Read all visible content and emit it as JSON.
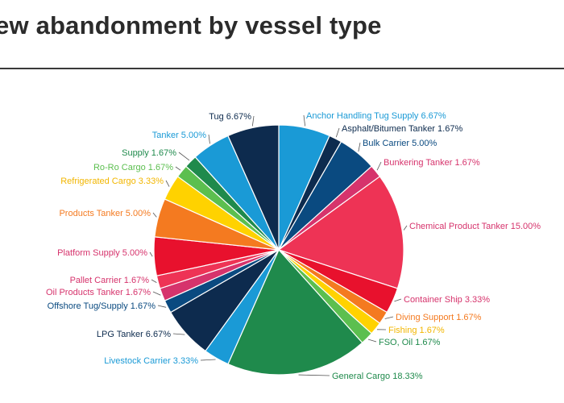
{
  "page": {
    "title": "ew abandonment by vessel type"
  },
  "chart_data": {
    "type": "pie",
    "title": "ew abandonment by vessel type",
    "unit": "%",
    "slices": [
      {
        "label": "Anchor Handling Tug Supply 6.67%",
        "category": "Anchor Handling Tug Supply",
        "value": 6.67,
        "color": "#1a9ad6"
      },
      {
        "label": "Asphalt/Bitumen Tanker 1.67%",
        "category": "Asphalt/Bitumen Tanker",
        "value": 1.67,
        "color": "#0d2b4e"
      },
      {
        "label": "Bulk Carrier 5.00%",
        "category": "Bulk Carrier",
        "value": 5.0,
        "color": "#0a4a80"
      },
      {
        "label": "Bunkering Tanker 1.67%",
        "category": "Bunkering Tanker",
        "value": 1.67,
        "color": "#d6336c"
      },
      {
        "label": "Chemical Product Tanker 15.00%",
        "category": "Chemical Product Tanker",
        "value": 15.0,
        "color": "#ee3355"
      },
      {
        "label": "Container Ship 3.33%",
        "category": "Container Ship",
        "value": 3.33,
        "color": "#e8112d"
      },
      {
        "label": "Diving Support 1.67%",
        "category": "Diving Support",
        "value": 1.67,
        "color": "#f47a20"
      },
      {
        "label": "Fishing 1.67%",
        "category": "Fishing",
        "value": 1.67,
        "color": "#ffd200"
      },
      {
        "label": "FSO, Oil 1.67%",
        "category": "FSO, Oil",
        "value": 1.67,
        "color": "#5cbf4f"
      },
      {
        "label": "General Cargo 18.33%",
        "category": "General Cargo",
        "value": 18.33,
        "color": "#1f8a4c"
      },
      {
        "label": "Livestock Carrier 3.33%",
        "category": "Livestock Carrier",
        "value": 3.33,
        "color": "#1a9ad6"
      },
      {
        "label": "LPG Tanker 6.67%",
        "category": "LPG Tanker",
        "value": 6.67,
        "color": "#0d2b4e"
      },
      {
        "label": "Offshore Tug/Supply 1.67%",
        "category": "Offshore Tug/Supply",
        "value": 1.67,
        "color": "#0a4a80"
      },
      {
        "label": "Oil Products Tanker 1.67%",
        "category": "Oil Products Tanker",
        "value": 1.67,
        "color": "#d6336c"
      },
      {
        "label": "Pallet Carrier 1.67%",
        "category": "Pallet Carrier",
        "value": 1.67,
        "color": "#ee3355"
      },
      {
        "label": "Platform Supply 5.00%",
        "category": "Platform Supply",
        "value": 5.0,
        "color": "#e8112d"
      },
      {
        "label": "Products Tanker 5.00%",
        "category": "Products Tanker",
        "value": 5.0,
        "color": "#f47a20"
      },
      {
        "label": "Refrigerated Cargo 3.33%",
        "category": "Refrigerated Cargo",
        "value": 3.33,
        "color": "#ffd200"
      },
      {
        "label": "Ro-Ro Cargo 1.67%",
        "category": "Ro-Ro Cargo",
        "value": 1.67,
        "color": "#5cbf4f"
      },
      {
        "label": "Supply 1.67%",
        "category": "Supply",
        "value": 1.67,
        "color": "#1f8a4c"
      },
      {
        "label": "Tanker 5.00%",
        "category": "Tanker",
        "value": 5.0,
        "color": "#1a9ad6"
      },
      {
        "label": "Tug 6.67%",
        "category": "Tug",
        "value": 6.67,
        "color": "#0d2b4e"
      }
    ],
    "label_colors": {
      "Anchor Handling Tug Supply": "#1a9ad6",
      "Asphalt/Bitumen Tanker": "#0d2b4e",
      "Bulk Carrier": "#0a4a80",
      "Bunkering Tanker": "#d6336c",
      "Chemical Product Tanker": "#d6336c",
      "Container Ship": "#d6336c",
      "Diving Support": "#f47a20",
      "Fishing": "#f2b600",
      "FSO, Oil": "#1f8a4c",
      "General Cargo": "#1f8a4c",
      "Livestock Carrier": "#1a9ad6",
      "LPG Tanker": "#0d2b4e",
      "Offshore Tug/Supply": "#0a4a80",
      "Oil Products Tanker": "#d6336c",
      "Pallet Carrier": "#d6336c",
      "Platform Supply": "#d6336c",
      "Products Tanker": "#f47a20",
      "Refrigerated Cargo": "#f2b600",
      "Ro-Ro Cargo": "#5cbf4f",
      "Supply": "#1f8a4c",
      "Tanker": "#1a9ad6",
      "Tug": "#0d2b4e"
    },
    "start_angle": "12 o'clock",
    "direction": "clockwise",
    "legend": "none (outside labels with leader lines)"
  }
}
